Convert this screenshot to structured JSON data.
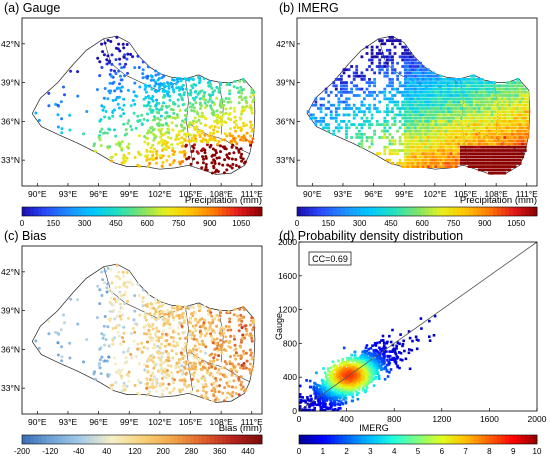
{
  "chart_data": [
    {
      "type": "map-scatter",
      "title": "(a) Gauge",
      "x_ticks": [
        "90°E",
        "93°E",
        "96°E",
        "99°E",
        "102°E",
        "105°E",
        "108°E",
        "111°E"
      ],
      "y_ticks": [
        "42°N",
        "39°N",
        "36°N",
        "33°N"
      ],
      "colorbar": {
        "label": "Precipitation (mm)",
        "ticks": [
          "0",
          "150",
          "300",
          "450",
          "600",
          "750",
          "900",
          "1050"
        ],
        "range": [
          0,
          1150
        ],
        "colors": [
          "#1a0dab",
          "#2a4cff",
          "#1e90ff",
          "#00c8ff",
          "#22e0c0",
          "#7de36a",
          "#e6f01e",
          "#ffc400",
          "#ff7a00",
          "#e41a1c",
          "#8b0000"
        ]
      }
    },
    {
      "type": "map-scatter",
      "title": "(b) IMERG",
      "x_ticks": [
        "90°E",
        "93°E",
        "96°E",
        "99°E",
        "102°E",
        "105°E",
        "108°E",
        "111°E"
      ],
      "y_ticks": [
        "42°N",
        "39°N",
        "36°N",
        "33°N"
      ],
      "colorbar": {
        "label": "Precipitation (mm)",
        "ticks": [
          "0",
          "150",
          "300",
          "450",
          "600",
          "750",
          "900",
          "1050"
        ],
        "range": [
          0,
          1150
        ],
        "colors": [
          "#1a0dab",
          "#2a4cff",
          "#1e90ff",
          "#00c8ff",
          "#22e0c0",
          "#7de36a",
          "#e6f01e",
          "#ffc400",
          "#ff7a00",
          "#e41a1c",
          "#8b0000"
        ]
      }
    },
    {
      "type": "map-scatter",
      "title": "(c) Bias",
      "x_ticks": [
        "90°E",
        "93°E",
        "96°E",
        "99°E",
        "102°E",
        "105°E",
        "108°E",
        "111°E"
      ],
      "y_ticks": [
        "42°N",
        "39°N",
        "36°N",
        "33°N"
      ],
      "colorbar": {
        "label": "Bias (mm)",
        "ticks": [
          "-200",
          "-120",
          "-40",
          "40",
          "120",
          "200",
          "280",
          "360",
          "440"
        ],
        "range": [
          -200,
          480
        ],
        "colors": [
          "#3a6db5",
          "#6fa3d6",
          "#a7cde8",
          "#f6f0c8",
          "#f6d27a",
          "#f2a64a",
          "#e0632a",
          "#b8241c",
          "#7a0c0c"
        ]
      }
    },
    {
      "type": "scatter",
      "title": "(d) Probability density distribution",
      "xlabel": "IMERG",
      "ylabel": "Gauge",
      "xlim": [
        0,
        2000
      ],
      "ylim": [
        0,
        2000
      ],
      "x_ticks": [
        "0",
        "400",
        "800",
        "1200",
        "1600",
        "2000"
      ],
      "y_ticks": [
        "0",
        "400",
        "800",
        "1200",
        "1600",
        "2000"
      ],
      "annotation": "CC=0.69",
      "colorbar": {
        "ticks": [
          "0",
          "1",
          "2",
          "3",
          "4",
          "5",
          "6",
          "7",
          "8",
          "9",
          "10"
        ],
        "range": [
          0,
          10
        ],
        "colors": [
          "#00008f",
          "#0000ff",
          "#0060ff",
          "#00bfff",
          "#20ffdf",
          "#80ff80",
          "#dfff20",
          "#ffbf00",
          "#ff6000",
          "#ff0000",
          "#8f0000"
        ]
      }
    }
  ]
}
